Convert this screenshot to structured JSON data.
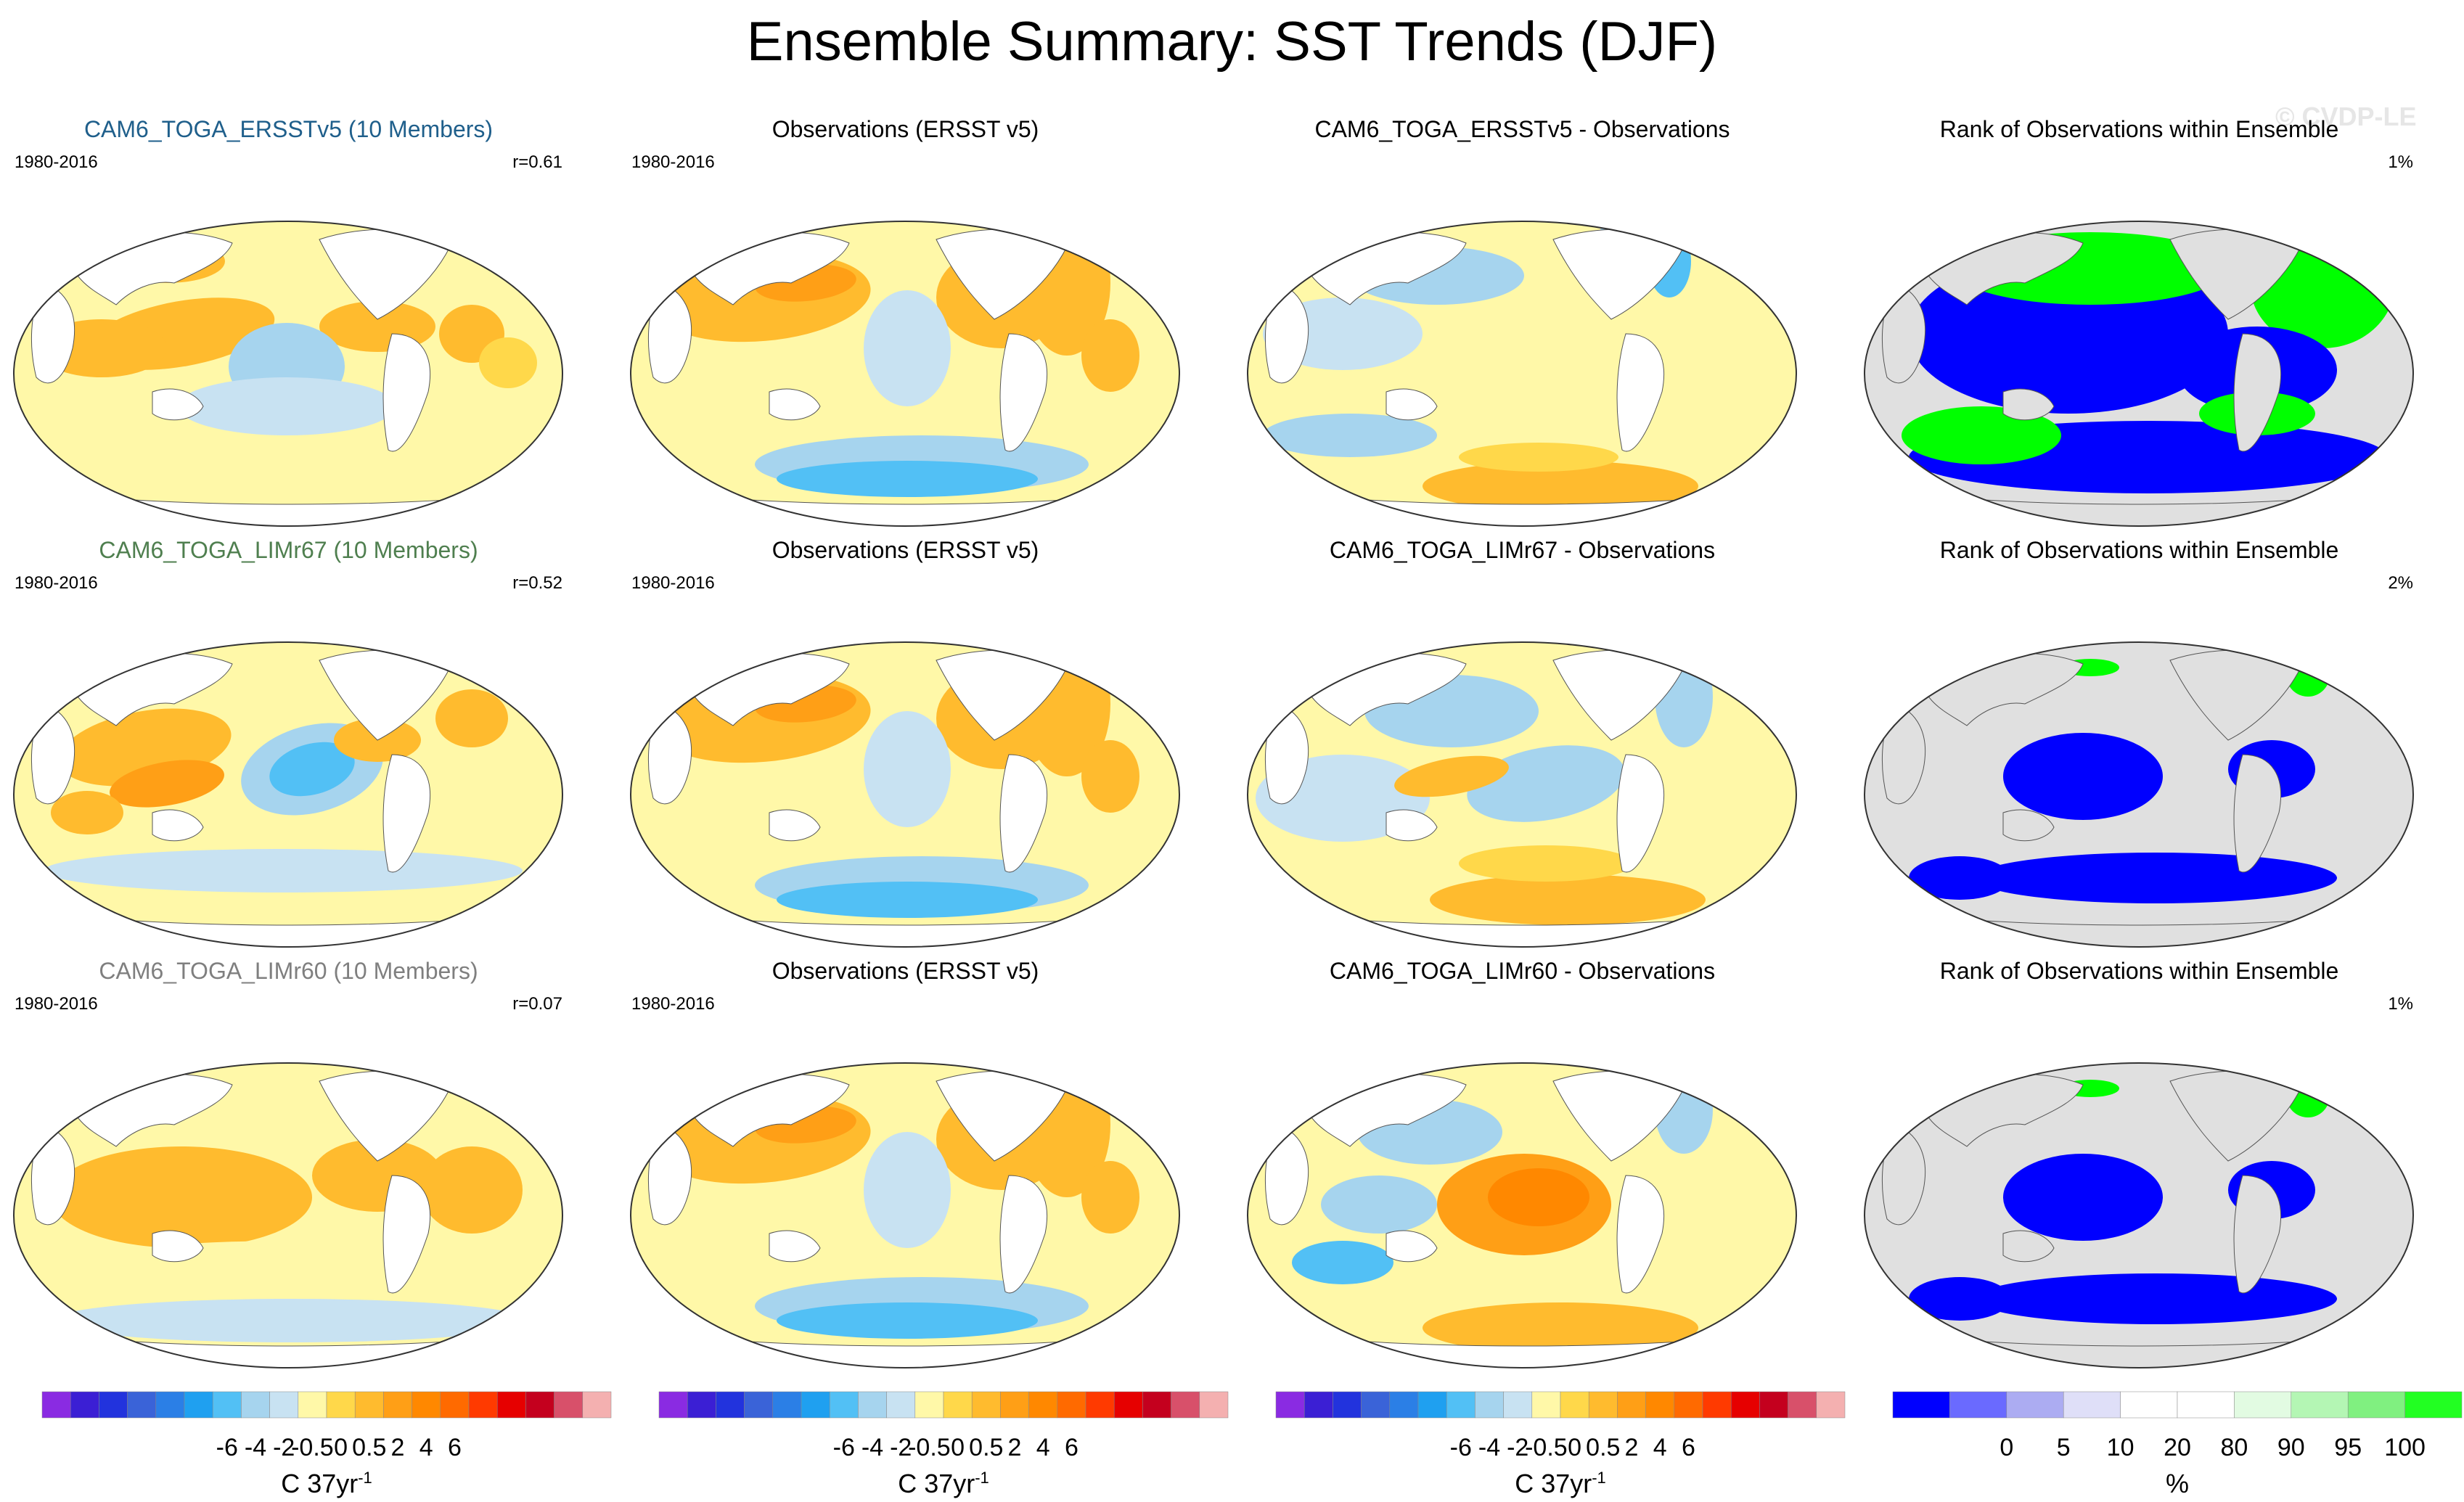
{
  "title": "Ensemble Summary: SST Trends (DJF)",
  "watermark": "© CVDP-LE",
  "colors": {
    "ocean_default": "#fff8a8",
    "land": "#ffffff",
    "rank_bg": "#e0e0e0",
    "rank_low": "#0000ff",
    "rank_high": "#00ff00"
  },
  "rows": [
    {
      "model": {
        "title": "CAM6_TOGA_ERSSTv5 (10 Members)",
        "title_color": "#1f5f8b",
        "period": "1980-2016",
        "r": "r=0.61",
        "pattern": "model-ersst"
      },
      "obs": {
        "title": "Observations (ERSST v5)",
        "period": "1980-2016",
        "pattern": "obs"
      },
      "diff": {
        "title": "CAM6_TOGA_ERSSTv5 - Observations",
        "pattern": "diff-ersst"
      },
      "rank": {
        "title": "Rank of Observations within Ensemble",
        "pct": "1%",
        "pattern": "rank-ersst"
      }
    },
    {
      "model": {
        "title": "CAM6_TOGA_LIMr67 (10 Members)",
        "title_color": "#4f7f4f",
        "period": "1980-2016",
        "r": "r=0.52",
        "pattern": "model-lim67"
      },
      "obs": {
        "title": "Observations (ERSST v5)",
        "period": "1980-2016",
        "pattern": "obs"
      },
      "diff": {
        "title": "CAM6_TOGA_LIMr67 - Observations",
        "pattern": "diff-lim67"
      },
      "rank": {
        "title": "Rank of Observations within Ensemble",
        "pct": "2%",
        "pattern": "rank-lim"
      }
    },
    {
      "model": {
        "title": "CAM6_TOGA_LIMr60 (10 Members)",
        "title_color": "#7f7f7f",
        "period": "1980-2016",
        "r": "r=0.07",
        "pattern": "model-lim60"
      },
      "obs": {
        "title": "Observations (ERSST v5)",
        "period": "1980-2016",
        "pattern": "obs"
      },
      "diff": {
        "title": "CAM6_TOGA_LIMr60 - Observations",
        "pattern": "diff-lim60"
      },
      "rank": {
        "title": "Rank of Observations within Ensemble",
        "pct": "1%",
        "pattern": "rank-lim"
      }
    }
  ],
  "sst_colorbar": {
    "colors": [
      "#8a2be2",
      "#3b1fd4",
      "#2233dd",
      "#3a63d8",
      "#2b7fe6",
      "#1fa0f0",
      "#52c0f5",
      "#a6d4ee",
      "#c8e2f2",
      "#fff8a8",
      "#ffd84a",
      "#ffbb2e",
      "#ff9f16",
      "#ff8800",
      "#ff6a00",
      "#ff3a00",
      "#e60000",
      "#c4001e",
      "#d8506a",
      "#f4b0b0"
    ],
    "labels": [
      "-6",
      "-4",
      "-2",
      "-0.5",
      "0",
      "0.5",
      "2",
      "4",
      "6"
    ],
    "units": "C 37yr",
    "units_sup": "-1"
  },
  "rank_colorbar": {
    "colors": [
      "#0000ff",
      "#6a6aff",
      "#acacf2",
      "#dfdff8",
      "#ffffff",
      "#ffffff",
      "#e2fbe2",
      "#b4f6b4",
      "#80f080",
      "#22ff22"
    ],
    "labels": [
      "0",
      "5",
      "10",
      "20",
      "80",
      "90",
      "95",
      "100"
    ],
    "units": "%"
  }
}
